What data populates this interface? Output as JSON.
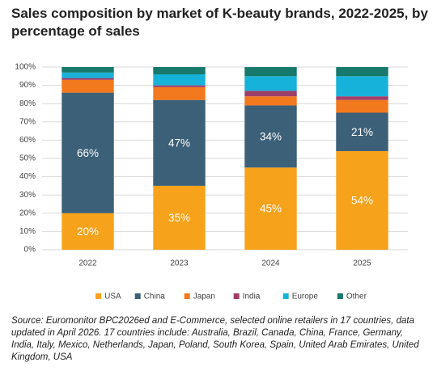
{
  "chart_data": {
    "type": "stacked-bar",
    "title": "Sales composition by market of K-beauty brands, 2022-2025, by percentage of sales",
    "categories": [
      "2022",
      "2023",
      "2024",
      "2025"
    ],
    "series": [
      {
        "name": "USA",
        "color": "#f7a21b",
        "values": [
          20,
          35,
          45,
          54
        ],
        "value_labels": [
          "20%",
          "35%",
          "45%",
          "54%"
        ]
      },
      {
        "name": "China",
        "color": "#3b6078",
        "values": [
          66,
          47,
          34,
          21
        ],
        "value_labels": [
          "66%",
          "47%",
          "34%",
          "21%"
        ]
      },
      {
        "name": "Japan",
        "color": "#f2791e",
        "values": [
          7,
          7,
          5,
          7
        ]
      },
      {
        "name": "India",
        "color": "#9e3f6a",
        "values": [
          1,
          1,
          3,
          2
        ]
      },
      {
        "name": "Europe",
        "color": "#17b2d9",
        "values": [
          3,
          6,
          8,
          11
        ]
      },
      {
        "name": "Other",
        "color": "#16796b",
        "values": [
          3,
          4,
          5,
          5
        ]
      }
    ],
    "ylim": [
      0,
      100
    ],
    "yticks": [
      {
        "value": 0,
        "label": "0%"
      },
      {
        "value": 10,
        "label": "10%"
      },
      {
        "value": 20,
        "label": "20%"
      },
      {
        "value": 30,
        "label": "30%"
      },
      {
        "value": 40,
        "label": "40%"
      },
      {
        "value": 50,
        "label": "50%"
      },
      {
        "value": 60,
        "label": "60%"
      },
      {
        "value": 70,
        "label": "70%"
      },
      {
        "value": 80,
        "label": "80%"
      },
      {
        "value": 90,
        "label": "90%"
      },
      {
        "value": 100,
        "label": "100%"
      }
    ],
    "grid": true,
    "legend": "bottom",
    "source": "Source: Euromonitor BPC2026ed and E-Commerce, selected online retailers in 17 countries, data updated in April 2026. 17 countries include: Australia, Brazil, Canada, China, France, Germany, India, Italy, Mexico, Netherlands, Japan, Poland, South Korea, Spain, United Arab Emirates, United Kingdom, USA"
  }
}
